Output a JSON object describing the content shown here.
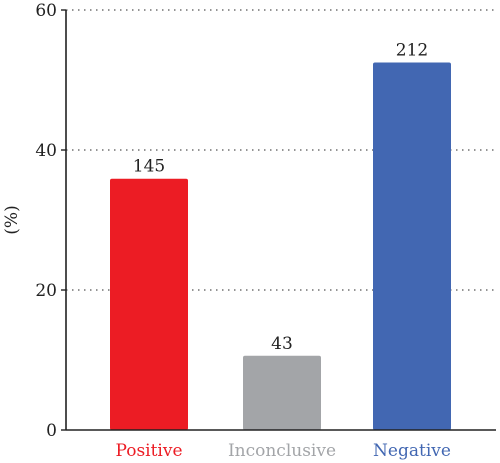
{
  "chart_data": {
    "type": "bar",
    "ylabel": "(%)",
    "ylim": [
      0,
      60
    ],
    "yticks": [
      0,
      20,
      40,
      60
    ],
    "grid": "horizontal dotted",
    "categories": [
      "Positive",
      "Inconclusive",
      "Negative"
    ],
    "values": [
      35.9,
      10.6,
      52.5
    ],
    "data_labels": [
      "145",
      "43",
      "212"
    ],
    "colors": [
      "#ec1c24",
      "#a3a5a8",
      "#4267b2"
    ]
  }
}
